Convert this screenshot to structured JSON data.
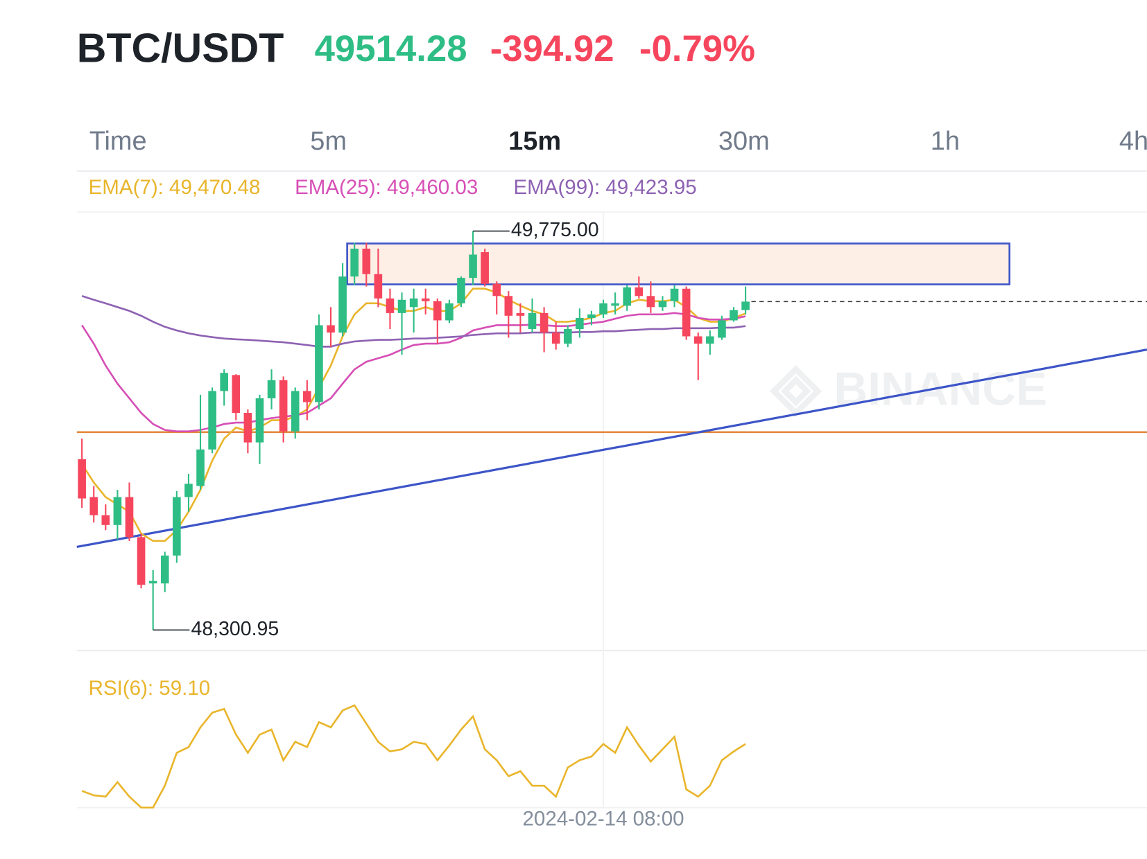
{
  "header": {
    "symbol": "BTC/USDT",
    "price": "49514.28",
    "change": "-394.92",
    "change_percent": "-0.79%"
  },
  "tabs": [
    "Time",
    "5m",
    "15m",
    "30m",
    "1h",
    "4h"
  ],
  "active_tab": "15m",
  "chart_data": {
    "type": "candlestick",
    "categories": [
      null,
      null,
      null,
      null,
      null,
      null,
      null,
      null,
      null,
      null,
      null,
      null,
      null,
      null,
      null,
      null,
      null,
      null,
      null,
      null,
      null,
      null,
      null,
      null,
      null,
      null,
      null,
      null,
      null,
      null,
      null,
      null,
      null,
      null,
      null,
      null,
      null,
      null,
      null,
      null,
      null,
      null,
      null,
      null,
      "2024-02-14 08:00",
      null,
      null,
      null,
      null,
      null,
      null,
      null,
      null,
      null,
      null,
      null,
      null
    ],
    "up_color": "#2ebd85",
    "down_color": "#f6465d",
    "open": [
      48932,
      48792,
      48725,
      48689,
      48792,
      48644,
      48473,
      48473,
      48576,
      48792,
      48833,
      48968,
      49184,
      49243,
      49103,
      48994,
      49157,
      49224,
      49035,
      49184,
      49143,
      49427,
      49400,
      49607,
      49710,
      49616,
      49526,
      49472,
      49494,
      49526,
      49516,
      49445,
      49508,
      49602,
      49697,
      49580,
      49535,
      49472,
      49413,
      49472,
      49400,
      49359,
      49413,
      49454,
      49467,
      49499,
      49499,
      49567,
      49535,
      49494,
      49516,
      49562,
      49386,
      49359,
      49381,
      49445,
      49483
    ],
    "high": [
      49008,
      48833,
      48765,
      48819,
      48846,
      48657,
      48522,
      48590,
      48814,
      48878,
      49170,
      49197,
      49264,
      49246,
      49116,
      49170,
      49264,
      49238,
      49197,
      49224,
      49467,
      49494,
      49656,
      49732,
      49732,
      49710,
      49562,
      49548,
      49562,
      49562,
      49526,
      49521,
      49607,
      49775,
      49710,
      49589,
      49553,
      49508,
      49526,
      49494,
      49440,
      49427,
      49489,
      49480,
      49521,
      49548,
      49575,
      49607,
      49589,
      49535,
      49575,
      49570,
      49400,
      49408,
      49462,
      49494,
      49570
    ],
    "low": [
      48752,
      48698,
      48670,
      48635,
      48630,
      48455,
      48300.95,
      48441,
      48549,
      48738,
      48819,
      48954,
      49130,
      49076,
      48954,
      48914,
      49116,
      48994,
      49008,
      49076,
      49116,
      49346,
      49386,
      49575,
      49570,
      49494,
      49413,
      49318,
      49400,
      49467,
      49359,
      49435,
      49494,
      49575,
      49570,
      49467,
      49381,
      49400,
      49400,
      49327,
      49337,
      49346,
      49381,
      49427,
      49454,
      49467,
      49480,
      49526,
      49472,
      49480,
      49494,
      49373,
      49224,
      49318,
      49373,
      49440,
      49467
    ],
    "close": [
      48787,
      48725,
      48689,
      48792,
      48644,
      48468,
      48482,
      48576,
      48792,
      48841,
      48968,
      49184,
      49251,
      49103,
      48994,
      49157,
      49224,
      49035,
      49184,
      49143,
      49427,
      49400,
      49607,
      49710,
      49616,
      49526,
      49472,
      49521,
      49526,
      49516,
      49445,
      49508,
      49602,
      49688,
      49580,
      49535,
      49462,
      49462,
      49472,
      49400,
      49359,
      49413,
      49454,
      49467,
      49508,
      49508,
      49567,
      49535,
      49494,
      49516,
      49562,
      49386,
      49359,
      49386,
      49445,
      49483,
      49514.28
    ],
    "ylim": [
      48225,
      49845
    ],
    "series": [
      {
        "name": "EMA(7): 49,470.48",
        "color": "#e9b52b",
        "values": [
          48914,
          48846,
          48792,
          48765,
          48738,
          48657,
          48630,
          48630,
          48670,
          48738,
          48819,
          48927,
          49008,
          49049,
          49035,
          49049,
          49076,
          49076,
          49089,
          49116,
          49197,
          49278,
          49386,
          49467,
          49508,
          49508,
          49494,
          49480,
          49480,
          49494,
          49480,
          49480,
          49508,
          49562,
          49562,
          49548,
          49521,
          49499,
          49480,
          49467,
          49440,
          49440,
          49445,
          49454,
          49472,
          49480,
          49508,
          49521,
          49516,
          49516,
          49521,
          49494,
          49454,
          49440,
          49440,
          49454,
          49470.48
        ]
      },
      {
        "name": "EMA(25): 49,460.03",
        "color": "#d64fb6",
        "values": [
          49427,
          49359,
          49278,
          49211,
          49157,
          49103,
          49062,
          49040,
          49035,
          49035,
          49040,
          49049,
          49062,
          49067,
          49067,
          49076,
          49084,
          49089,
          49094,
          49103,
          49130,
          49157,
          49211,
          49264,
          49292,
          49305,
          49318,
          49337,
          49354,
          49359,
          49359,
          49364,
          49381,
          49408,
          49418,
          49427,
          49427,
          49427,
          49429,
          49427,
          49424,
          49424,
          49429,
          49435,
          49440,
          49451,
          49462,
          49467,
          49467,
          49467,
          49472,
          49467,
          49454,
          49448,
          49448,
          49451,
          49460.03
        ]
      },
      {
        "name": "EMA(99): 49,423.95",
        "color": "#8e62b3",
        "values": [
          49535,
          49521,
          49508,
          49494,
          49480,
          49462,
          49440,
          49421,
          49408,
          49397,
          49389,
          49383,
          49378,
          49375,
          49373,
          49370,
          49367,
          49364,
          49359,
          49354,
          49348,
          49348,
          49359,
          49367,
          49370,
          49373,
          49373,
          49375,
          49378,
          49378,
          49381,
          49383,
          49386,
          49391,
          49394,
          49397,
          49397,
          49397,
          49400,
          49400,
          49400,
          49400,
          49402,
          49402,
          49405,
          49405,
          49408,
          49410,
          49413,
          49413,
          49416,
          49416,
          49416,
          49416,
          49418,
          49418,
          49423.95
        ]
      }
    ],
    "high_label": "49,775.00",
    "low_label": "48,300.95",
    "watermark": "BINANCE",
    "zone": [
      49578,
      49729
    ],
    "zone_color": "#fdeee6",
    "zone_border": "#3d55c8",
    "support": 49032,
    "support_color": "#e3893d",
    "trend": [
      48608,
      49337
    ],
    "trend_color": "#3d55c8",
    "rsi": {
      "name": "RSI(6): 59.10",
      "color": "#e9b52b",
      "ylim": [
        10,
        90
      ],
      "values": [
        24.9,
        21.7,
        20.7,
        31.3,
        20.7,
        12.7,
        12.7,
        28.7,
        52.7,
        56.9,
        71.3,
        82,
        84.7,
        66,
        52.7,
        66,
        69.7,
        47.3,
        60.7,
        56.9,
        75.1,
        71.3,
        83.6,
        87.3,
        74,
        60.7,
        53.7,
        55.3,
        60.7,
        59.1,
        47.3,
        58,
        69.7,
        79.3,
        55.3,
        47.3,
        35.6,
        39.3,
        28.7,
        28.7,
        20.7,
        42,
        47.3,
        50,
        59.1,
        52.7,
        71.3,
        58,
        46.3,
        55.3,
        64.4,
        26,
        20.7,
        28.7,
        47.3,
        53.7,
        59.1
      ]
    }
  }
}
